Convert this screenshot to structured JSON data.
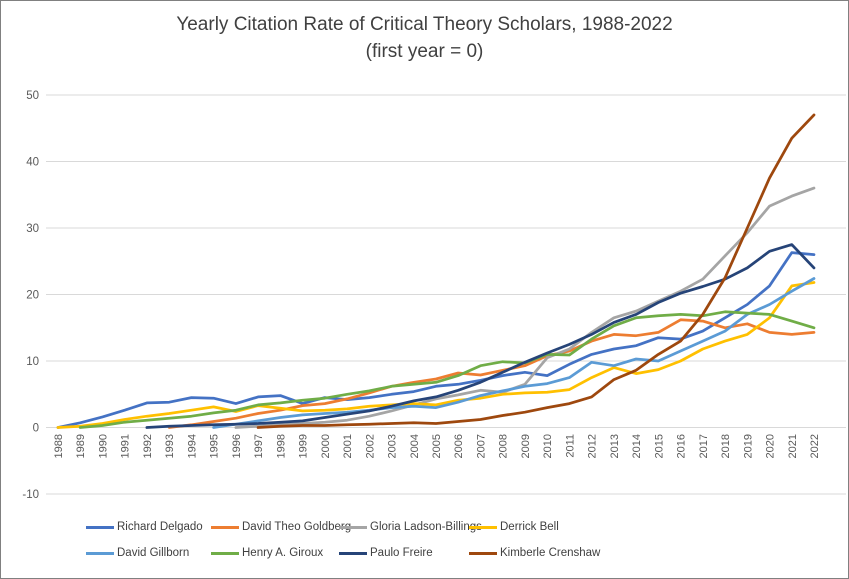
{
  "chart_data": {
    "type": "line",
    "title": "Yearly Citation Rate of Critical Theory Scholars, 1988-2022",
    "subtitle": "(first year = 0)",
    "xlabel": "",
    "ylabel": "",
    "ylim": [
      -10,
      50
    ],
    "yticks": [
      50,
      40,
      30,
      20,
      10,
      0,
      -10
    ],
    "grid": "horizontal",
    "gridline_color": "#D9D9D9",
    "tick_label_color": "#595959",
    "title_color": "#404040",
    "legend_position": "bottom",
    "x": [
      1988,
      1989,
      1990,
      1991,
      1992,
      1993,
      1994,
      1995,
      1996,
      1997,
      1998,
      1999,
      2000,
      2001,
      2002,
      2003,
      2004,
      2005,
      2006,
      2007,
      2008,
      2009,
      2010,
      2011,
      2012,
      2013,
      2014,
      2015,
      2016,
      2017,
      2018,
      2019,
      2020,
      2021,
      2022
    ],
    "series": [
      {
        "name": "Richard Delgado",
        "color": "#4472C4",
        "values": [
          0,
          0.7,
          1.6,
          2.6,
          3.7,
          3.8,
          4.5,
          4.4,
          3.6,
          4.6,
          4.8,
          3.6,
          4.5,
          4.2,
          4.5,
          5.0,
          5.4,
          6.2,
          6.5,
          7.1,
          7.8,
          8.3,
          7.8,
          9.5,
          11,
          11.8,
          12.3,
          13.5,
          13.3,
          14.5,
          16.5,
          18.5,
          21.3,
          26.3,
          26
        ]
      },
      {
        "name": "David Theo Goldberg",
        "color": "#ED7D31",
        "values": [
          null,
          null,
          null,
          null,
          null,
          0,
          0.4,
          0.9,
          1.4,
          2.1,
          2.6,
          3.3,
          3.6,
          4.3,
          5.2,
          6.2,
          6.8,
          7.3,
          8.2,
          7.9,
          8.6,
          9.3,
          10.8,
          11.5,
          13,
          14,
          13.8,
          14.3,
          16.2,
          16,
          15,
          15.6,
          14.3,
          14,
          14.3
        ]
      },
      {
        "name": "Gloria Ladson-Billings",
        "color": "#A5A5A5",
        "values": [
          null,
          null,
          null,
          null,
          null,
          null,
          null,
          null,
          0,
          0.2,
          0.4,
          0.6,
          0.8,
          1.1,
          1.7,
          2.5,
          3.4,
          4.3,
          4.9,
          5.6,
          5.3,
          6.5,
          10.5,
          11.8,
          14.3,
          16.5,
          17.5,
          19,
          20.5,
          22.3,
          25.8,
          29.3,
          33.3,
          34.8,
          36
        ]
      },
      {
        "name": "Derrick Bell",
        "color": "#FFC000",
        "values": [
          0,
          0.2,
          0.6,
          1.2,
          1.7,
          2.1,
          2.6,
          3.1,
          2.4,
          3.3,
          2.9,
          2.5,
          2.6,
          2.8,
          3.2,
          3.4,
          3.6,
          3.4,
          4.1,
          4.4,
          5.0,
          5.2,
          5.3,
          5.7,
          7.5,
          9.0,
          8.1,
          8.7,
          10,
          11.8,
          13,
          14,
          16.5,
          21.3,
          21.8
        ]
      },
      {
        "name": "David Gillborn",
        "color": "#5B9BD5",
        "values": [
          null,
          null,
          null,
          null,
          null,
          null,
          null,
          0,
          0.5,
          1.0,
          1.5,
          1.9,
          2.1,
          2.3,
          2.6,
          3.0,
          3.2,
          3.0,
          3.8,
          4.8,
          5.5,
          6.2,
          6.6,
          7.5,
          9.8,
          9.3,
          10.3,
          10,
          11.5,
          13,
          14.5,
          17,
          18.5,
          20.5,
          22.4
        ]
      },
      {
        "name": "Henry A. Giroux",
        "color": "#70AD47",
        "values": [
          null,
          0,
          0.3,
          0.8,
          1.1,
          1.4,
          1.7,
          2.2,
          2.6,
          3.4,
          3.7,
          4.1,
          4.4,
          5.0,
          5.5,
          6.2,
          6.5,
          6.8,
          7.8,
          9.3,
          9.9,
          9.7,
          11,
          10.9,
          13.3,
          15.3,
          16.5,
          16.8,
          17,
          16.8,
          17.4,
          17.2,
          17,
          16,
          15
        ]
      },
      {
        "name": "Paulo Freire",
        "color": "#264478",
        "values": [
          null,
          null,
          null,
          null,
          0,
          0.2,
          0.3,
          0.4,
          0.5,
          0.6,
          0.8,
          1.0,
          1.5,
          2.0,
          2.5,
          3.2,
          4.0,
          4.6,
          5.6,
          6.8,
          8.3,
          9.8,
          11.2,
          12.5,
          14,
          15.8,
          17,
          18.8,
          20.2,
          21.2,
          22.3,
          24,
          26.5,
          27.5,
          24
        ]
      },
      {
        "name": "Kimberle Crenshaw",
        "color": "#9E480E",
        "values": [
          null,
          null,
          null,
          null,
          null,
          null,
          null,
          null,
          null,
          0,
          0.2,
          0.3,
          0.3,
          0.4,
          0.5,
          0.6,
          0.7,
          0.6,
          0.9,
          1.2,
          1.8,
          2.3,
          3.0,
          3.6,
          4.6,
          7.2,
          8.6,
          11,
          13,
          17,
          22.5,
          30,
          37.5,
          43.5,
          47
        ]
      }
    ]
  }
}
